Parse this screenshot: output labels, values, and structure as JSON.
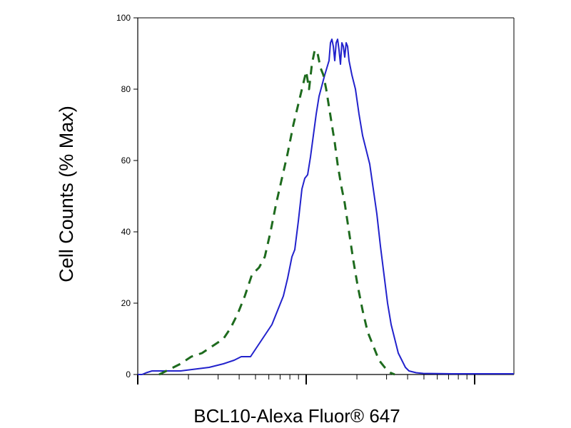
{
  "chart_data": {
    "type": "line",
    "title": "",
    "xlabel": "BCL10-Alexa Fluor® 647",
    "ylabel": "Cell Counts (% Max)",
    "x_scale": "log",
    "ylim": [
      0,
      100
    ],
    "y_ticks": [
      "0",
      "20",
      "40",
      "60",
      "80",
      "100"
    ],
    "x_tick_labels": [],
    "grid": false,
    "legend": "none",
    "series": [
      {
        "style": "solid",
        "color": "#2222cc",
        "points": [
          [
            0,
            0
          ],
          [
            6,
            0
          ],
          [
            12,
            0.5
          ],
          [
            20,
            1
          ],
          [
            40,
            1
          ],
          [
            60,
            1
          ],
          [
            80,
            1.5
          ],
          [
            100,
            2
          ],
          [
            120,
            3
          ],
          [
            135,
            4
          ],
          [
            145,
            5
          ],
          [
            158,
            5
          ],
          [
            168,
            8
          ],
          [
            178,
            11
          ],
          [
            188,
            14
          ],
          [
            196,
            18
          ],
          [
            204,
            22
          ],
          [
            210,
            27
          ],
          [
            216,
            33
          ],
          [
            220,
            35
          ],
          [
            225,
            43
          ],
          [
            230,
            52
          ],
          [
            234,
            55
          ],
          [
            238,
            56
          ],
          [
            242,
            61
          ],
          [
            246,
            67
          ],
          [
            250,
            73
          ],
          [
            254,
            78
          ],
          [
            258,
            81
          ],
          [
            262,
            84
          ],
          [
            265,
            86
          ],
          [
            268,
            88
          ],
          [
            270,
            93
          ],
          [
            272,
            94
          ],
          [
            274,
            92
          ],
          [
            276,
            88
          ],
          [
            278,
            93
          ],
          [
            280,
            94
          ],
          [
            282,
            91
          ],
          [
            284,
            87
          ],
          [
            286,
            93
          ],
          [
            288,
            92
          ],
          [
            290,
            89
          ],
          [
            292,
            93
          ],
          [
            294,
            92
          ],
          [
            296,
            88
          ],
          [
            300,
            84
          ],
          [
            305,
            80
          ],
          [
            310,
            73
          ],
          [
            315,
            67
          ],
          [
            320,
            63
          ],
          [
            325,
            59
          ],
          [
            330,
            52
          ],
          [
            335,
            45
          ],
          [
            340,
            36
          ],
          [
            345,
            28
          ],
          [
            350,
            20
          ],
          [
            355,
            14
          ],
          [
            360,
            10
          ],
          [
            365,
            6
          ],
          [
            370,
            4
          ],
          [
            375,
            2
          ],
          [
            380,
            1
          ],
          [
            390,
            0.5
          ],
          [
            400,
            0.3
          ],
          [
            440,
            0.2
          ],
          [
            480,
            0.2
          ],
          [
            527,
            0.2
          ]
        ]
      },
      {
        "style": "dashed",
        "color": "#1e6b1e",
        "points": [
          [
            30,
            0
          ],
          [
            40,
            1
          ],
          [
            50,
            2
          ],
          [
            60,
            3
          ],
          [
            75,
            5
          ],
          [
            90,
            6
          ],
          [
            105,
            8
          ],
          [
            120,
            10
          ],
          [
            130,
            13
          ],
          [
            140,
            17
          ],
          [
            150,
            22
          ],
          [
            160,
            28
          ],
          [
            170,
            30
          ],
          [
            178,
            33
          ],
          [
            186,
            40
          ],
          [
            194,
            48
          ],
          [
            202,
            55
          ],
          [
            210,
            62
          ],
          [
            218,
            70
          ],
          [
            224,
            75
          ],
          [
            230,
            80
          ],
          [
            236,
            85
          ],
          [
            240,
            80
          ],
          [
            244,
            87
          ],
          [
            248,
            91
          ],
          [
            252,
            90
          ],
          [
            256,
            86
          ],
          [
            260,
            84
          ],
          [
            264,
            80
          ],
          [
            268,
            75
          ],
          [
            272,
            70
          ],
          [
            276,
            65
          ],
          [
            280,
            59
          ],
          [
            285,
            53
          ],
          [
            290,
            48
          ],
          [
            296,
            40
          ],
          [
            302,
            32
          ],
          [
            308,
            25
          ],
          [
            315,
            18
          ],
          [
            322,
            12
          ],
          [
            330,
            8
          ],
          [
            338,
            4
          ],
          [
            346,
            2
          ],
          [
            354,
            0.5
          ],
          [
            360,
            0
          ]
        ]
      }
    ]
  }
}
